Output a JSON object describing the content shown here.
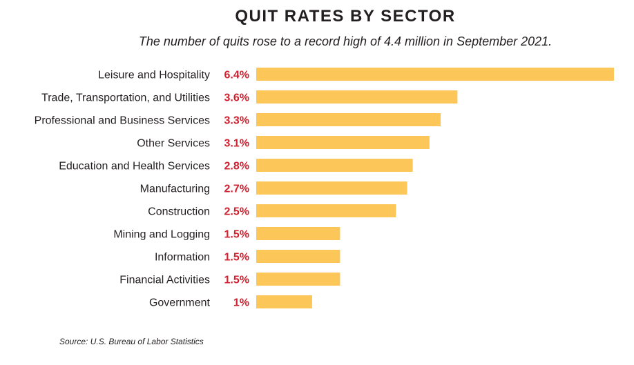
{
  "title": "QUIT RATES BY SECTOR",
  "subtitle": "The number of quits rose to a record high of 4.4 million in September 2021.",
  "source": "Source: U.S. Bureau of Labor Statistics",
  "colors": {
    "bar": "#fcc659",
    "value": "#d0202f",
    "text": "#231f20"
  },
  "chart_data": {
    "type": "bar",
    "orientation": "horizontal",
    "categories": [
      "Leisure and Hospitality",
      "Trade, Transportation, and Utilities",
      "Professional and Business Services",
      "Other Services",
      "Education and Health Services",
      "Manufacturing",
      "Construction",
      "Mining and Logging",
      "Information",
      "Financial Activities",
      "Government"
    ],
    "values": [
      6.4,
      3.6,
      3.3,
      3.1,
      2.8,
      2.7,
      2.5,
      1.5,
      1.5,
      1.5,
      1.0
    ],
    "value_labels": [
      "6.4%",
      "3.6%",
      "3.3%",
      "3.1%",
      "2.8%",
      "2.7%",
      "2.5%",
      "1.5%",
      "1.5%",
      "1.5%",
      "1%"
    ],
    "title": "QUIT RATES BY SECTOR",
    "subtitle": "The number of quits rose to a record high of 4.4 million in September 2021.",
    "xlabel": "",
    "ylabel": "",
    "xlim": [
      0,
      6.4
    ],
    "grid": false,
    "legend": "none"
  }
}
